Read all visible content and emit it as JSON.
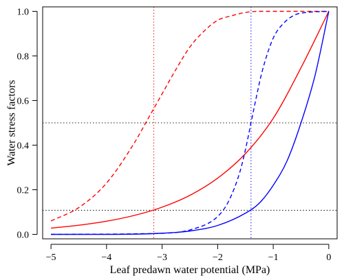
{
  "chart_data": {
    "type": "line",
    "xlabel": "Leaf predawn water potential (MPa)",
    "ylabel": "Water stress factors",
    "xlim": [
      -5.15,
      0.15
    ],
    "ylim": [
      -0.02,
      1.02
    ],
    "grid": false,
    "legend": "none",
    "x_ticks": [
      -5,
      -4,
      -3,
      -2,
      -1,
      0
    ],
    "x_tick_labels": [
      "−5",
      "−4",
      "−3",
      "−2",
      "−1",
      "0"
    ],
    "y_ticks": [
      0.0,
      0.2,
      0.4,
      0.6,
      0.8,
      1.0
    ],
    "y_tick_labels": [
      "0.0",
      "0.2",
      "0.4",
      "0.6",
      "0.8",
      "1.0"
    ],
    "series": [
      {
        "color": "#ff0000",
        "dash": "solid",
        "x": [
          -5.0,
          -4.5,
          -4.0,
          -3.5,
          -3.0,
          -2.5,
          -2.0,
          -1.5,
          -1.0,
          -0.5,
          0.0
        ],
        "y": [
          0.028,
          0.041,
          0.059,
          0.085,
          0.122,
          0.175,
          0.252,
          0.362,
          0.52,
          0.747,
          1.0
        ]
      },
      {
        "color": "#ff0000",
        "dash": "dashed",
        "x": [
          -5.0,
          -4.5,
          -4.0,
          -3.5,
          -3.25,
          -3.0,
          -2.75,
          -2.5,
          -2.25,
          -2.0,
          -1.75,
          -1.5,
          -1.25,
          -1.0,
          0.0
        ],
        "y": [
          0.06,
          0.12,
          0.23,
          0.41,
          0.52,
          0.63,
          0.74,
          0.84,
          0.91,
          0.96,
          0.98,
          0.995,
          1.0,
          1.0,
          1.0
        ]
      },
      {
        "color": "#0000ff",
        "dash": "solid",
        "x": [
          -5.0,
          -4.0,
          -3.0,
          -2.5,
          -2.0,
          -1.5,
          -1.25,
          -1.0,
          -0.75,
          -0.5,
          -0.25,
          0.0
        ],
        "y": [
          0.0,
          0.0,
          0.005,
          0.015,
          0.04,
          0.095,
          0.14,
          0.22,
          0.33,
          0.5,
          0.71,
          1.0
        ]
      },
      {
        "color": "#0000ff",
        "dash": "dashed",
        "x": [
          -5.0,
          -3.0,
          -2.5,
          -2.0,
          -1.8,
          -1.6,
          -1.5,
          -1.4,
          -1.3,
          -1.2,
          -1.0,
          -0.8,
          -0.6,
          -0.4,
          0.0
        ],
        "y": [
          0.0,
          0.005,
          0.02,
          0.08,
          0.15,
          0.28,
          0.38,
          0.5,
          0.62,
          0.73,
          0.88,
          0.95,
          0.985,
          0.995,
          1.0
        ]
      }
    ],
    "reference_lines": [
      {
        "orientation": "vertical",
        "value": -3.15,
        "color": "#ff0000"
      },
      {
        "orientation": "vertical",
        "value": -1.4,
        "color": "#0000ff"
      },
      {
        "orientation": "horizontal",
        "value": 0.5,
        "color": "#000000"
      },
      {
        "orientation": "horizontal",
        "value": 0.108,
        "color": "#000000"
      }
    ]
  }
}
